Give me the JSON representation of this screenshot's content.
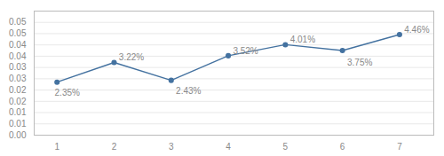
{
  "chart_data": {
    "type": "line",
    "x": [
      1,
      2,
      3,
      4,
      5,
      6,
      7
    ],
    "values": [
      0.0235,
      0.0322,
      0.0243,
      0.0352,
      0.0401,
      0.0375,
      0.0446
    ],
    "value_labels": [
      "2.35%",
      "3.22%",
      "2.43%",
      "3.52%",
      "4.01%",
      "3.75%",
      "4.46%"
    ],
    "data_labels": true,
    "color": "#4472a0",
    "marker": "circle",
    "xlim": [
      0.6,
      7.6
    ],
    "xticks": [
      1,
      2,
      3,
      4,
      5,
      6,
      7
    ],
    "ylim": [
      0.0,
      0.055
    ],
    "yticks": [
      {
        "value": 0.0,
        "label": "0.00"
      },
      {
        "value": 0.005,
        "label": "0.01"
      },
      0.01,
      {
        "value": 0.015,
        "label": "0.02"
      },
      0.02,
      {
        "value": 0.025,
        "label": "0.03"
      },
      0.03,
      {
        "value": 0.035,
        "label": "0.04"
      },
      0.04,
      {
        "value": 0.045,
        "label": "0.05"
      },
      0.05
    ],
    "grid": true
  }
}
